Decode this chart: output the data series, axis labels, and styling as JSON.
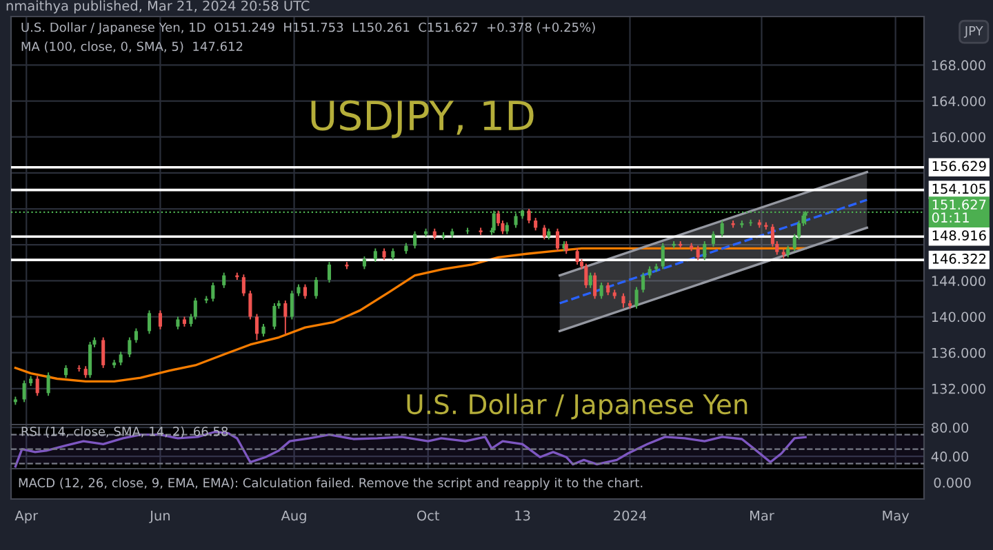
{
  "chart_data": [
    {
      "type": "candlestick",
      "title": "USDJPY, 1D",
      "subtitle": "U.S. Dollar / Japanese Yen",
      "ylabel": "JPY",
      "annotations": [
        "nmaithya published, Mar 21, 2024 20:58 UTC",
        "U.S. Dollar / Japanese Yen, 1D  O151.249  H151.753  L150.261  C151.627  +0.378 (+0.25%)",
        "MA (100, close, 0, SMA, 5)  147.612"
      ],
      "x": [
        "2023-03-27",
        "2023-03-31",
        "2023-04-03",
        "2023-04-06",
        "2023-04-11",
        "2023-04-19",
        "2023-04-25",
        "2023-04-28",
        "2023-04-30",
        "2023-05-02",
        "2023-05-06",
        "2023-05-11",
        "2023-05-14",
        "2023-05-18",
        "2023-05-21",
        "2023-05-27",
        "2023-06-01",
        "2023-06-09",
        "2023-06-12",
        "2023-06-15",
        "2023-06-17",
        "2023-06-22",
        "2023-06-25",
        "2023-06-30",
        "2023-07-06",
        "2023-07-09",
        "2023-07-12",
        "2023-07-15",
        "2023-07-18",
        "2023-07-23",
        "2023-07-25",
        "2023-07-28",
        "2023-07-31",
        "2023-08-03",
        "2023-08-06",
        "2023-08-11",
        "2023-08-17",
        "2023-08-25",
        "2023-09-02",
        "2023-09-07",
        "2023-09-11",
        "2023-09-15",
        "2023-09-21",
        "2023-09-25",
        "2023-09-30",
        "2023-10-04",
        "2023-10-08",
        "2023-10-12",
        "2023-10-19",
        "2023-10-25",
        "2023-10-30",
        "2023-10-31",
        "2023-11-02",
        "2023-11-04",
        "2023-11-06",
        "2023-11-10",
        "2023-11-13",
        "2023-11-16",
        "2023-11-19",
        "2023-11-23",
        "2023-11-25",
        "2023-11-29",
        "2023-12-02",
        "2023-12-03",
        "2023-12-08",
        "2023-12-10",
        "2023-12-12",
        "2023-12-14",
        "2023-12-16",
        "2023-12-19",
        "2023-12-22",
        "2023-12-25",
        "2023-12-29",
        "2024-01-01",
        "2024-01-04",
        "2024-01-07",
        "2024-01-10",
        "2024-01-13",
        "2024-01-16",
        "2024-01-21",
        "2024-01-24",
        "2024-01-29",
        "2024-02-01",
        "2024-02-04",
        "2024-02-08",
        "2024-02-12",
        "2024-02-17",
        "2024-02-21",
        "2024-02-25",
        "2024-02-29",
        "2024-03-03",
        "2024-03-06",
        "2024-03-08",
        "2024-03-11",
        "2024-03-13",
        "2024-03-16",
        "2024-03-18",
        "2024-03-20",
        "2024-03-21"
      ],
      "ohlc": [
        [
          130.5,
          131.1,
          130.2,
          130.8
        ],
        [
          130.8,
          132.9,
          130.5,
          132.6
        ],
        [
          132.6,
          133.4,
          132.3,
          133.1
        ],
        [
          133.1,
          133.4,
          131.2,
          131.5
        ],
        [
          131.5,
          133.8,
          131.2,
          133.5
        ],
        [
          133.5,
          134.6,
          133.2,
          134.3
        ],
        [
          134.3,
          134.6,
          133.9,
          134.2
        ],
        [
          134.2,
          134.5,
          133.2,
          133.5
        ],
        [
          133.5,
          137.2,
          133.2,
          136.9
        ],
        [
          136.9,
          137.7,
          136.6,
          137.4
        ],
        [
          137.4,
          137.7,
          134.3,
          134.6
        ],
        [
          134.6,
          135.2,
          134.3,
          134.9
        ],
        [
          134.9,
          136.1,
          134.6,
          135.8
        ],
        [
          135.8,
          137.7,
          135.5,
          137.4
        ],
        [
          137.4,
          138.7,
          137.1,
          138.4
        ],
        [
          138.4,
          140.7,
          138.1,
          140.4
        ],
        [
          140.4,
          140.7,
          138.6,
          138.9
        ],
        [
          138.9,
          140.0,
          138.6,
          139.7
        ],
        [
          139.7,
          140.0,
          138.9,
          139.2
        ],
        [
          139.2,
          140.3,
          138.9,
          140.0
        ],
        [
          140.0,
          142.1,
          139.7,
          141.8
        ],
        [
          141.8,
          142.3,
          141.5,
          142.0
        ],
        [
          142.0,
          143.8,
          141.7,
          143.5
        ],
        [
          143.5,
          144.9,
          143.2,
          144.6
        ],
        [
          144.6,
          144.9,
          144.1,
          144.4
        ],
        [
          144.4,
          144.7,
          142.3,
          142.6
        ],
        [
          142.6,
          142.9,
          139.7,
          140.0
        ],
        [
          140.0,
          140.3,
          137.4,
          138.1
        ],
        [
          138.1,
          139.2,
          137.8,
          138.9
        ],
        [
          138.9,
          141.5,
          138.6,
          141.2
        ],
        [
          141.2,
          141.8,
          140.9,
          141.5
        ],
        [
          141.5,
          141.8,
          138.1,
          140.0
        ],
        [
          140.0,
          142.9,
          139.7,
          142.6
        ],
        [
          142.6,
          143.6,
          142.3,
          143.3
        ],
        [
          143.3,
          143.6,
          142.0,
          142.3
        ],
        [
          142.3,
          144.4,
          142.0,
          144.1
        ],
        [
          144.1,
          146.1,
          143.8,
          145.8
        ],
        [
          145.8,
          146.1,
          145.3,
          145.6
        ],
        [
          145.6,
          146.7,
          145.3,
          146.4
        ],
        [
          146.4,
          147.6,
          146.1,
          147.3
        ],
        [
          147.3,
          147.6,
          146.3,
          146.6
        ],
        [
          146.6,
          147.6,
          146.3,
          147.3
        ],
        [
          147.3,
          148.2,
          147.0,
          147.9
        ],
        [
          147.9,
          149.5,
          147.6,
          149.2
        ],
        [
          149.2,
          149.8,
          148.9,
          149.5
        ],
        [
          149.5,
          149.8,
          148.6,
          148.9
        ],
        [
          148.9,
          149.4,
          148.6,
          149.1
        ],
        [
          149.1,
          149.8,
          148.8,
          149.5
        ],
        [
          149.5,
          149.9,
          149.2,
          149.6
        ],
        [
          149.6,
          149.9,
          149.1,
          149.4
        ],
        [
          149.4,
          149.9,
          149.1,
          149.6
        ],
        [
          149.6,
          151.8,
          149.3,
          151.5
        ],
        [
          151.5,
          151.8,
          150.1,
          150.4
        ],
        [
          150.4,
          150.7,
          149.2,
          149.5
        ],
        [
          149.5,
          150.5,
          149.2,
          150.2
        ],
        [
          150.2,
          151.5,
          149.9,
          151.2
        ],
        [
          151.2,
          151.9,
          150.9,
          151.8
        ],
        [
          151.8,
          152.0,
          150.4,
          150.7
        ],
        [
          150.7,
          151.0,
          149.6,
          149.9
        ],
        [
          149.9,
          150.2,
          148.6,
          148.9
        ],
        [
          148.9,
          149.8,
          148.6,
          149.5
        ],
        [
          149.5,
          149.8,
          147.3,
          147.6
        ],
        [
          147.6,
          148.4,
          147.3,
          148.1
        ],
        [
          148.1,
          148.4,
          147.0,
          147.3
        ],
        [
          147.3,
          147.6,
          145.8,
          146.1
        ],
        [
          146.1,
          146.4,
          145.3,
          145.6
        ],
        [
          145.6,
          145.9,
          143.2,
          143.5
        ],
        [
          143.5,
          144.9,
          143.2,
          144.6
        ],
        [
          144.6,
          144.9,
          142.0,
          142.3
        ],
        [
          142.3,
          143.8,
          142.0,
          143.5
        ],
        [
          143.5,
          143.8,
          142.4,
          142.7
        ],
        [
          142.7,
          143.0,
          142.0,
          142.3
        ],
        [
          142.3,
          142.6,
          141.0,
          141.5
        ],
        [
          141.5,
          141.8,
          140.9,
          141.2
        ],
        [
          141.2,
          143.3,
          140.9,
          143.0
        ],
        [
          143.0,
          144.9,
          142.7,
          144.6
        ],
        [
          144.6,
          145.6,
          144.3,
          145.3
        ],
        [
          145.3,
          145.9,
          145.0,
          145.6
        ],
        [
          145.6,
          148.2,
          145.3,
          147.9
        ],
        [
          147.9,
          148.4,
          147.6,
          148.1
        ],
        [
          148.1,
          148.4,
          147.6,
          147.9
        ],
        [
          147.9,
          148.2,
          147.3,
          147.6
        ],
        [
          147.6,
          147.9,
          146.3,
          146.6
        ],
        [
          146.6,
          148.4,
          146.3,
          148.1
        ],
        [
          148.1,
          149.5,
          147.8,
          149.2
        ],
        [
          149.2,
          150.7,
          148.9,
          150.4
        ],
        [
          150.4,
          150.7,
          149.9,
          150.2
        ],
        [
          150.2,
          150.7,
          149.9,
          150.4
        ],
        [
          150.4,
          150.8,
          150.1,
          150.5
        ],
        [
          150.5,
          150.8,
          149.9,
          150.2
        ],
        [
          150.2,
          150.5,
          149.7,
          150.0
        ],
        [
          150.0,
          150.3,
          147.8,
          148.1
        ],
        [
          148.1,
          148.4,
          146.9,
          147.2
        ],
        [
          147.2,
          147.5,
          146.5,
          146.9
        ],
        [
          146.9,
          147.9,
          146.6,
          147.6
        ],
        [
          147.6,
          149.2,
          147.3,
          148.9
        ],
        [
          148.9,
          150.7,
          148.6,
          150.4
        ],
        [
          150.4,
          151.5,
          150.1,
          151.249
        ],
        [
          151.249,
          151.753,
          150.261,
          151.627
        ]
      ],
      "series": [
        {
          "type": "line",
          "color": "#f57c00",
          "x": [
            "2023-03-27",
            "2023-04-03",
            "2023-04-15",
            "2023-04-28",
            "2023-05-11",
            "2023-05-23",
            "2023-06-05",
            "2023-06-17",
            "2023-06-30",
            "2023-07-12",
            "2023-07-25",
            "2023-08-06",
            "2023-08-19",
            "2023-08-31",
            "2023-09-13",
            "2023-09-25",
            "2023-10-08",
            "2023-10-21",
            "2023-11-02",
            "2023-11-15",
            "2023-11-27",
            "2023-12-10",
            "2023-12-29",
            "2024-01-29",
            "2024-02-29",
            "2024-03-21"
          ],
          "values": [
            134.3,
            133.7,
            133.1,
            132.8,
            132.8,
            133.2,
            134.0,
            134.6,
            135.8,
            136.9,
            137.7,
            138.8,
            139.4,
            140.7,
            142.7,
            144.6,
            145.3,
            145.8,
            146.6,
            147.0,
            147.3,
            147.6,
            147.6,
            147.6,
            147.6,
            147.612
          ]
        },
        {
          "type": "line",
          "color": "#2962ff",
          "line_style": "dashed",
          "x": [
            "2023-11-30",
            "2024-04-18"
          ],
          "values": [
            141.5,
            153.0
          ],
          "lower": [
            138.4,
            149.9
          ],
          "upper": [
            144.6,
            156.1
          ]
        },
        {
          "type": "line",
          "color": "#9598a1",
          "x": [
            "2023-11-30",
            "2024-04-18"
          ],
          "values": [
            144.6,
            156.1
          ]
        },
        {
          "type": "line",
          "color": "#9598a1",
          "x": [
            "2023-11-30",
            "2024-04-18"
          ],
          "values": [
            138.4,
            149.9
          ]
        }
      ],
      "ref_lines": [
        {
          "axis": "y",
          "value": 156.629,
          "label": "156.629",
          "color": "#ffffff",
          "line_style": "solid"
        },
        {
          "axis": "y",
          "value": 154.105,
          "label": "154.105",
          "color": "#ffffff",
          "line_style": "solid"
        },
        {
          "axis": "y",
          "value": 151.627,
          "label": "151.627\n01:11",
          "color": "#4caf50",
          "line_style": "dotted"
        },
        {
          "axis": "y",
          "value": 148.916,
          "label": "148.916",
          "color": "#ffffff",
          "line_style": "solid"
        },
        {
          "axis": "y",
          "value": 146.322,
          "label": "146.322",
          "color": "#ffffff",
          "line_style": "solid"
        }
      ],
      "xlim": [
        "2023-03-25",
        "2024-05-14"
      ],
      "xticks": [
        {
          "value": "2023-04-01",
          "label": null
        },
        {
          "value": "2023-06-01",
          "label": null
        },
        {
          "value": "2023-08-01",
          "label": null
        },
        {
          "value": "2023-10-01",
          "label": null
        },
        {
          "value": "2023-11-13",
          "label": null
        },
        {
          "value": "2024-01-01",
          "label": null
        },
        {
          "value": "2024-03-01",
          "label": null
        },
        {
          "value": "2024-05-01",
          "label": null
        }
      ],
      "ylim": [
        128.0,
        173.4
      ],
      "yticks": [
        {
          "value": 132,
          "label": "132.000"
        },
        {
          "value": 136,
          "label": "136.000"
        },
        {
          "value": 140,
          "label": "140.000"
        },
        {
          "value": 144,
          "label": "144.000"
        },
        {
          "value": 148,
          "label": null
        },
        {
          "value": 152,
          "label": null
        },
        {
          "value": 156,
          "label": null
        },
        {
          "value": 160,
          "label": "160.000"
        },
        {
          "value": 164,
          "label": "164.000"
        },
        {
          "value": 168,
          "label": "168.000"
        }
      ],
      "tick_labels": "y",
      "grid": true
    },
    {
      "type": "line",
      "annotations": [
        "RSI (14, close, SMA, 14, 2)  66.58",
        "MACD (12, 26, close, 9, EMA, EMA): Calculation failed. Remove the script and reapply it to the chart.",
        "0.000"
      ],
      "x": [
        "2023-03-27",
        "2023-03-30",
        "2023-04-05",
        "2023-04-10",
        "2023-04-19",
        "2023-04-27",
        "2023-05-06",
        "2023-05-15",
        "2023-05-23",
        "2023-06-01",
        "2023-06-09",
        "2023-06-18",
        "2023-06-26",
        "2023-07-02",
        "2023-07-06",
        "2023-07-12",
        "2023-07-19",
        "2023-07-25",
        "2023-07-30",
        "2023-08-08",
        "2023-08-17",
        "2023-08-28",
        "2023-09-08",
        "2023-09-19",
        "2023-10-01",
        "2023-10-07",
        "2023-10-18",
        "2023-10-27",
        "2023-10-30",
        "2023-11-04",
        "2023-11-13",
        "2023-11-21",
        "2023-11-27",
        "2023-12-03",
        "2023-12-06",
        "2023-12-11",
        "2023-12-17",
        "2023-12-26",
        "2023-12-31",
        "2024-01-09",
        "2024-01-17",
        "2024-01-26",
        "2024-02-04",
        "2024-02-12",
        "2024-02-21",
        "2024-02-26",
        "2024-03-05",
        "2024-03-10",
        "2024-03-16",
        "2024-03-21"
      ],
      "series": [
        {
          "color": "#7e57c2",
          "values": [
            26,
            50,
            46,
            48,
            55,
            61,
            57,
            65,
            70,
            70,
            65,
            67,
            74,
            72,
            65,
            32,
            39,
            48,
            61,
            65,
            70,
            64,
            65,
            67,
            61,
            65,
            61,
            67,
            51,
            61,
            57,
            39,
            46,
            39,
            29,
            35,
            29,
            35,
            44,
            57,
            67,
            65,
            61,
            67,
            64,
            52,
            32,
            44,
            65,
            66.58
          ]
        }
      ],
      "bands": [
        {
          "axis": "y",
          "from": 30,
          "to": 70,
          "color": "#7e57c2"
        }
      ],
      "ref_lines": [
        {
          "axis": "y",
          "value": 70,
          "color": "#787b86",
          "line_style": "dashed"
        },
        {
          "axis": "y",
          "value": 50,
          "color": "#787b86",
          "line_style": "dashed"
        },
        {
          "axis": "y",
          "value": 30,
          "color": "#787b86",
          "line_style": "dashed"
        }
      ],
      "xlim": [
        "2023-03-25",
        "2024-05-14"
      ],
      "xticks": [
        {
          "value": "2023-04-01",
          "label": "Apr"
        },
        {
          "value": "2023-06-01",
          "label": "Jun"
        },
        {
          "value": "2023-08-01",
          "label": "Aug"
        },
        {
          "value": "2023-10-01",
          "label": "Oct"
        },
        {
          "value": "2023-11-13",
          "label": "13"
        },
        {
          "value": "2024-01-01",
          "label": "2024"
        },
        {
          "value": "2024-03-01",
          "label": "Mar"
        },
        {
          "value": "2024-05-01",
          "label": "May"
        }
      ],
      "ylim": [
        23,
        84
      ],
      "yticks": [
        {
          "value": 40,
          "label": "40.00"
        },
        {
          "value": 80,
          "label": "80.00"
        }
      ],
      "grid": true
    }
  ]
}
